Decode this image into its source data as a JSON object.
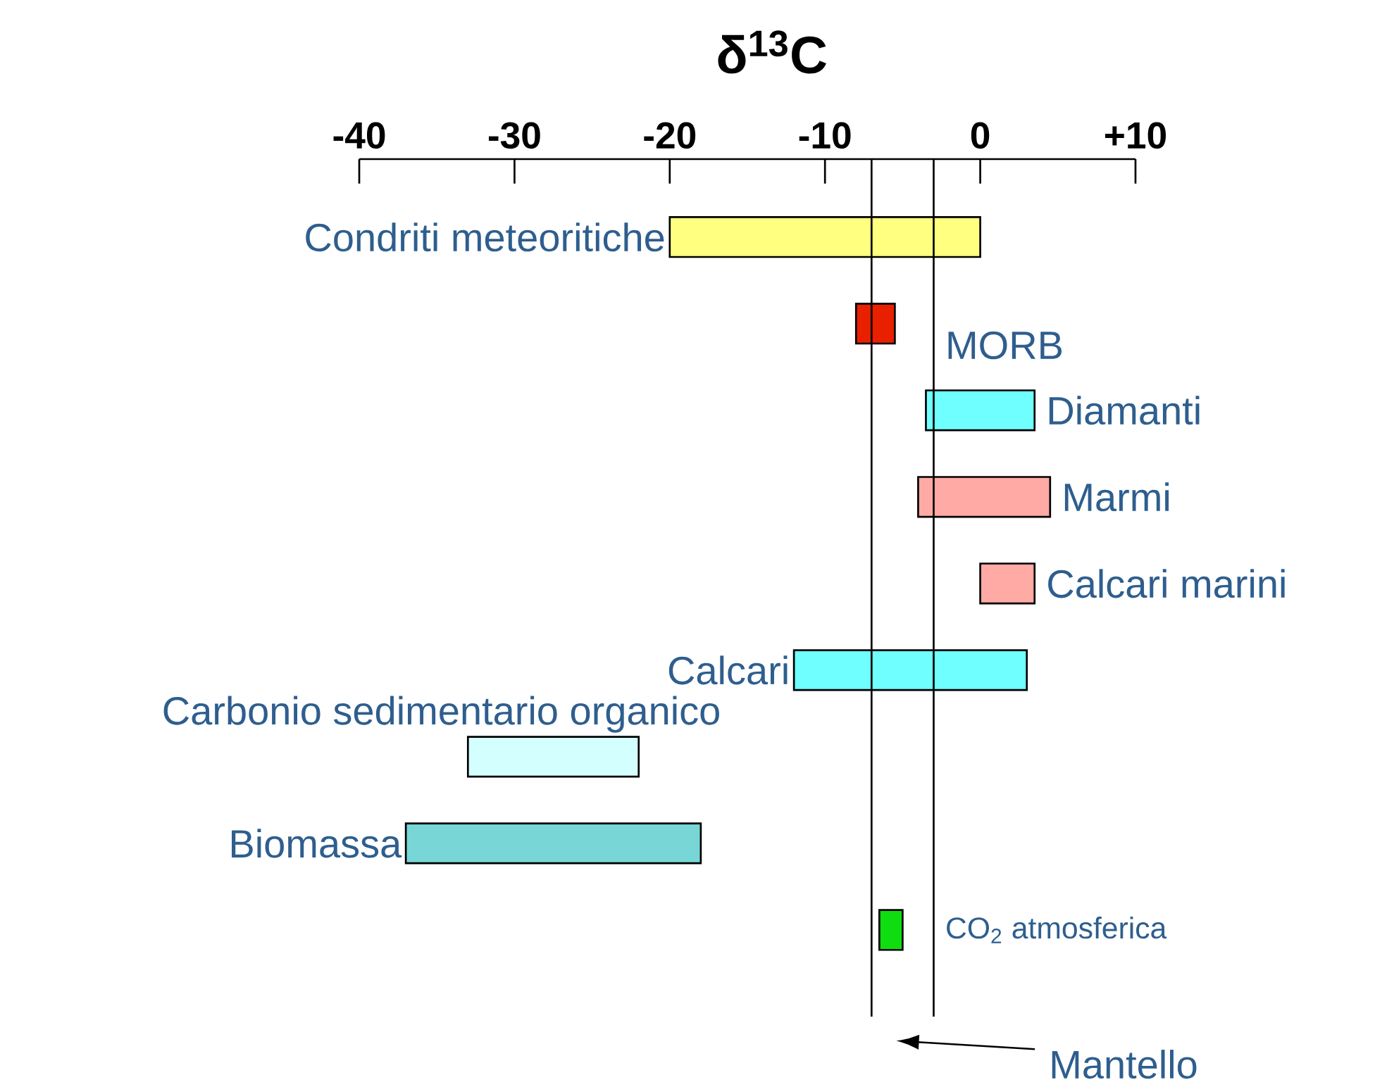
{
  "chart_data": {
    "type": "bar",
    "orientation": "horizontal",
    "title": "δ$^{13}$C",
    "categories": [
      "Condriti meteoritiche",
      "MORB",
      "Diamanti",
      "Marmi",
      "Calcari marini",
      "Calcari",
      "Carbonio sedimentario organico",
      "Biomassa",
      "CO$_{2}$ atmosferica"
    ],
    "base": [
      -20,
      -8,
      -3.5,
      -4,
      0,
      -12,
      -33,
      -37,
      -6.5
    ],
    "values": [
      20,
      2.5,
      7,
      8.5,
      3.5,
      15,
      11,
      19,
      1.5
    ],
    "colors": [
      "#ffff80",
      "#e82000",
      "#70ffff",
      "#ffaaa4",
      "#ffaaa4",
      "#70ffff",
      "#d4ffff",
      "#78d6d6",
      "#10dd10"
    ],
    "xlim": [
      -40,
      10
    ],
    "xticks": [
      -40,
      -30,
      -20,
      -10,
      0,
      {
        "value": 10,
        "label": "+10"
      }
    ],
    "ref_lines": [
      {
        "axis": "x",
        "value": -7,
        "label": "Mantello",
        "color": "#000000"
      },
      {
        "axis": "x",
        "value": -3,
        "color": "#000000"
      }
    ]
  }
}
